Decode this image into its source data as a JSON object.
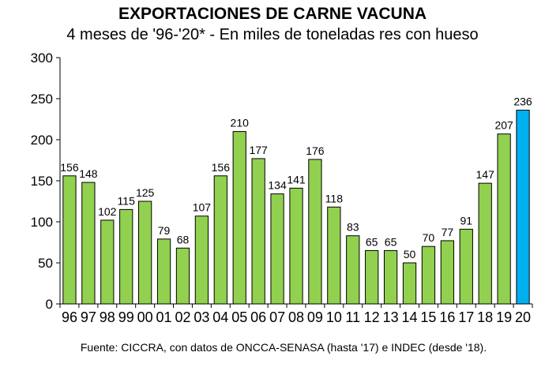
{
  "chart_data": {
    "type": "bar",
    "title": "EXPORTACIONES DE CARNE VACUNA",
    "subtitle": "4 meses de '96-'20* - En miles de toneladas res con hueso",
    "xlabel": "",
    "ylabel": "",
    "ylim": [
      0,
      300
    ],
    "yticks": [
      0,
      50,
      100,
      150,
      200,
      250,
      300
    ],
    "grid": false,
    "categories": [
      "96",
      "97",
      "98",
      "99",
      "00",
      "01",
      "02",
      "03",
      "04",
      "05",
      "06",
      "07",
      "08",
      "09",
      "10",
      "11",
      "12",
      "13",
      "14",
      "15",
      "16",
      "17",
      "18",
      "19",
      "20"
    ],
    "values": [
      156,
      148,
      102,
      115,
      125,
      79,
      68,
      107,
      156,
      210,
      177,
      134,
      141,
      176,
      118,
      83,
      65,
      65,
      50,
      70,
      77,
      91,
      147,
      207,
      236
    ],
    "data_labels": [
      "156",
      "148",
      "102",
      "115",
      "125",
      "79",
      "68",
      "107",
      "156",
      "210",
      "177",
      "134",
      "141",
      "176",
      "118",
      "83",
      "65",
      "65",
      "50",
      "70",
      "77",
      "91",
      "147",
      "207",
      "236"
    ],
    "highlight_index": 24,
    "colors": {
      "bar": "#92D050",
      "highlight": "#00B0F0",
      "bar_stroke": "#000000"
    },
    "source": "Fuente: CICCRA, con datos de ONCCA-SENASA (hasta '17) e INDEC (desde '18)."
  }
}
